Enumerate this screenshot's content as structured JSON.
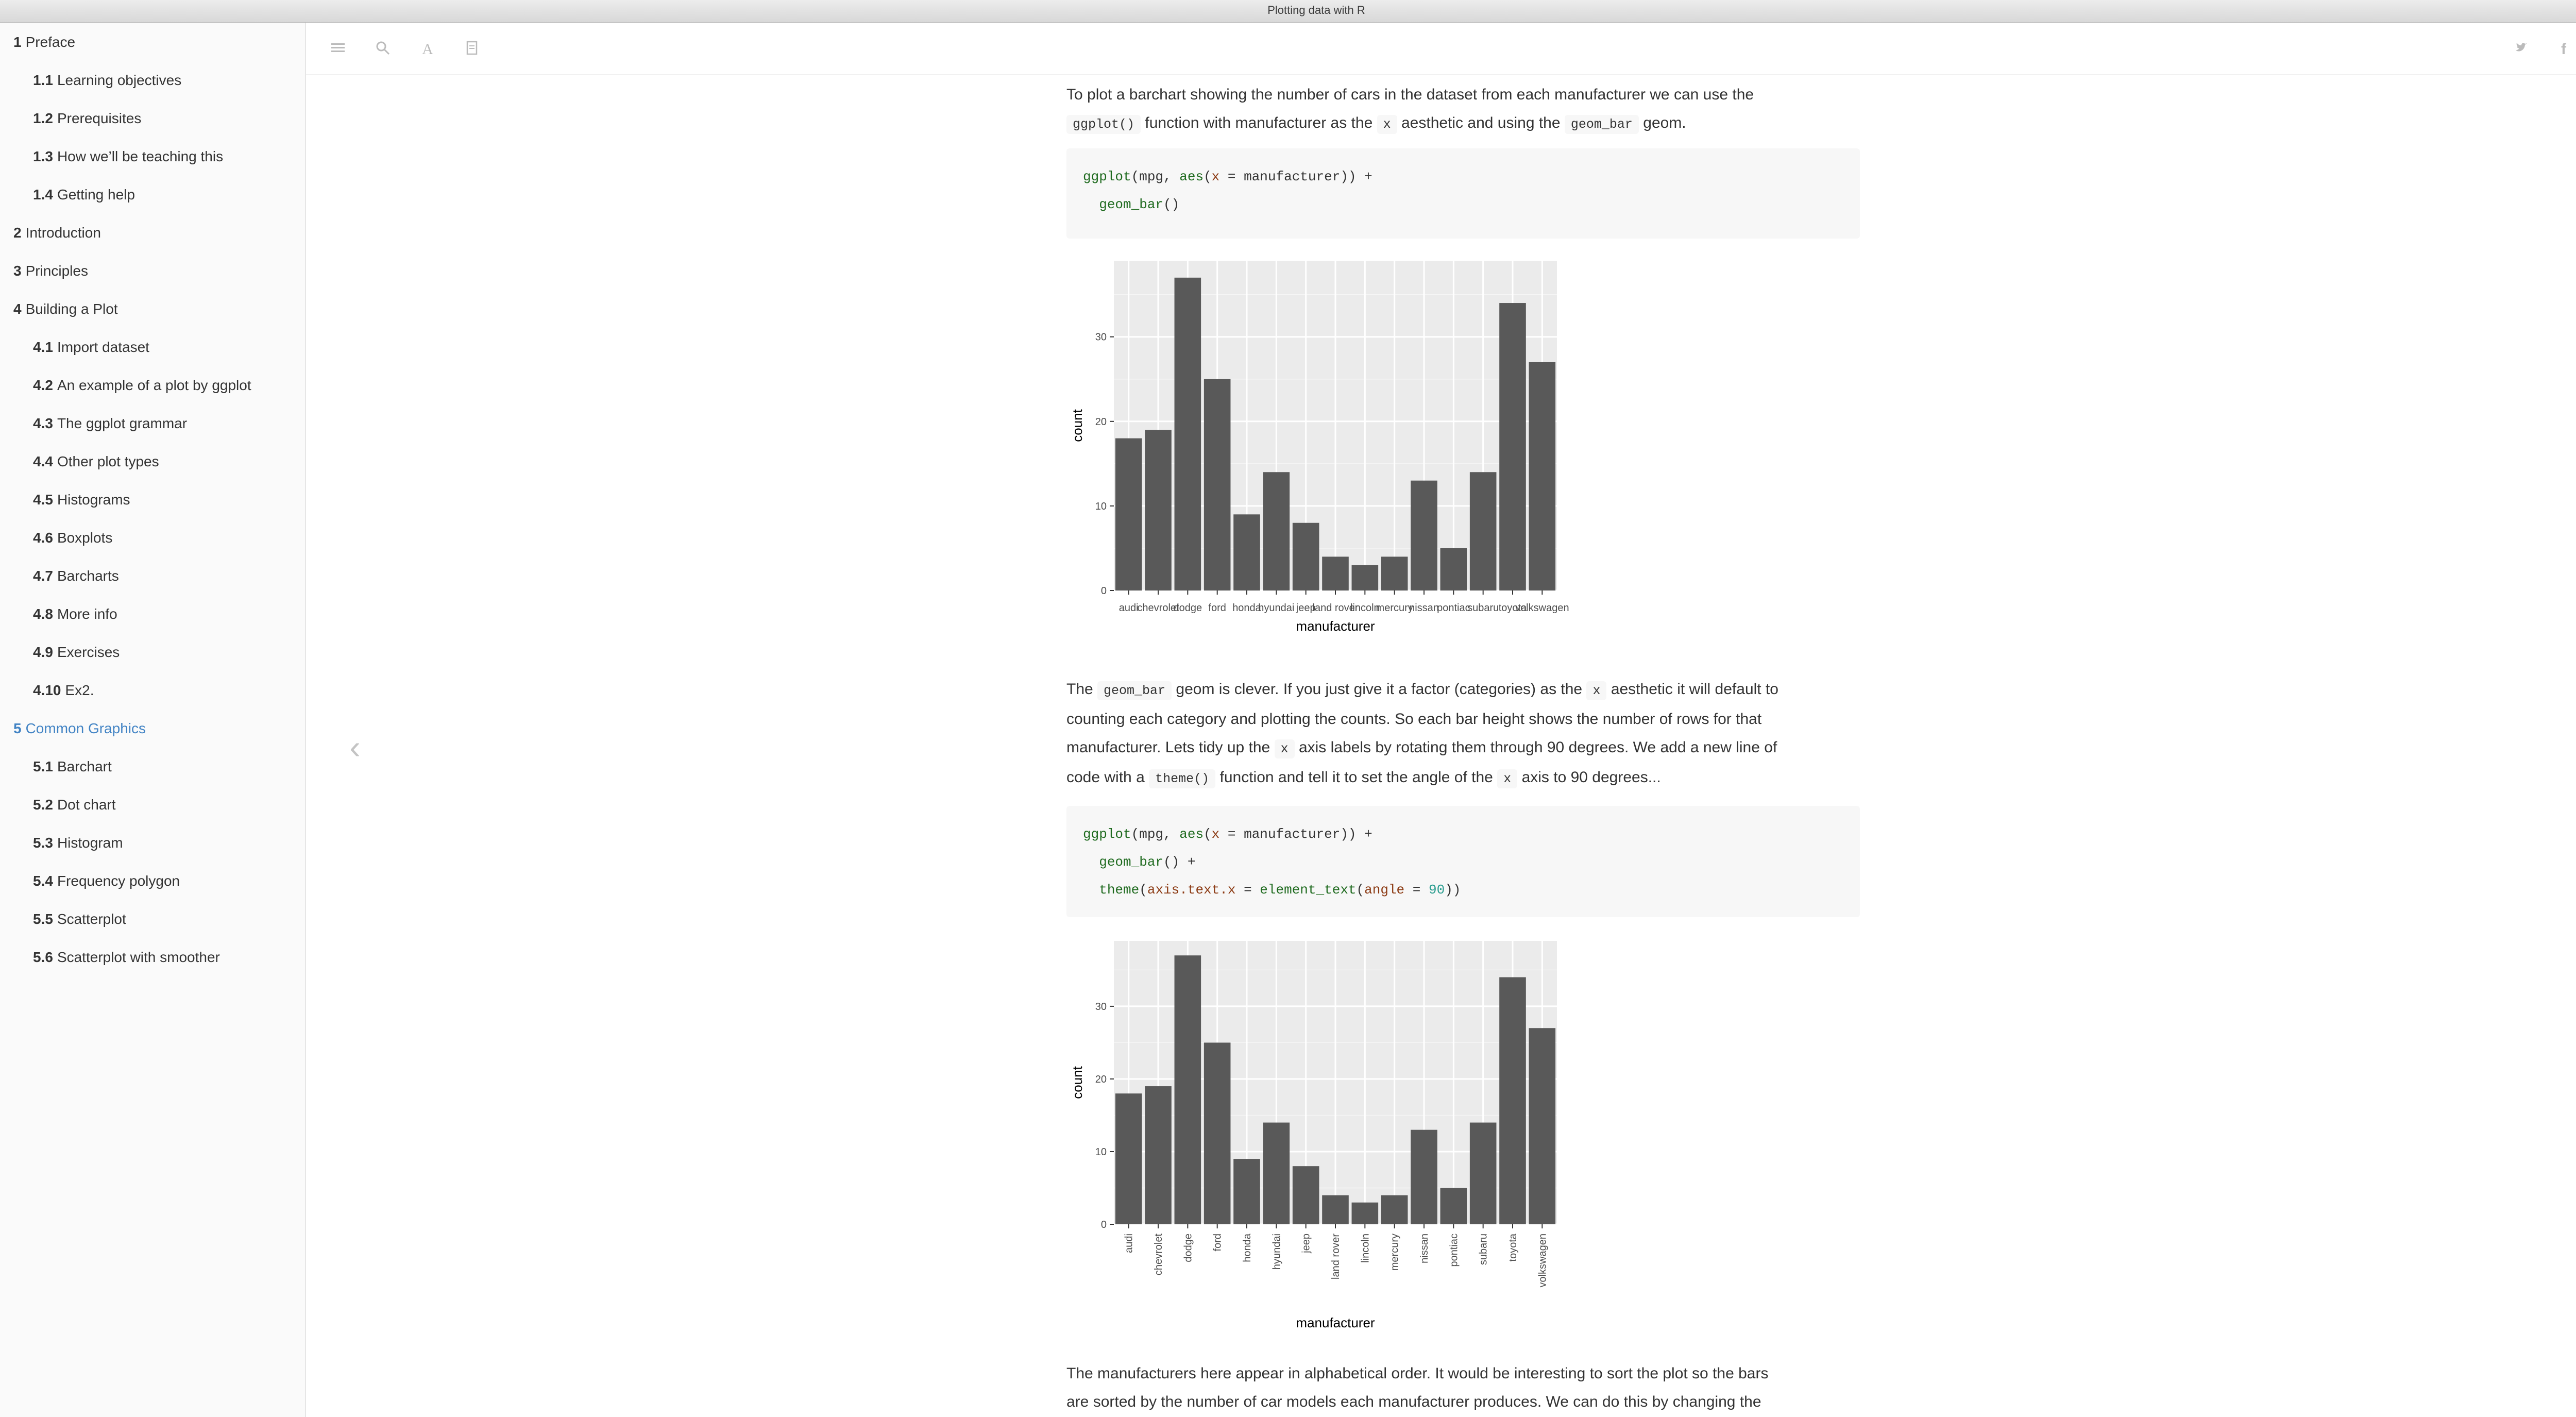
{
  "window": {
    "title": "Plotting data with R"
  },
  "toc": [
    {
      "num": "1",
      "label": "Preface",
      "level": 1
    },
    {
      "num": "1.1",
      "label": "Learning objectives",
      "level": 2
    },
    {
      "num": "1.2",
      "label": "Prerequisites",
      "level": 2
    },
    {
      "num": "1.3",
      "label": "How we’ll be teaching this",
      "level": 2
    },
    {
      "num": "1.4",
      "label": "Getting help",
      "level": 2
    },
    {
      "num": "2",
      "label": "Introduction",
      "level": 1
    },
    {
      "num": "3",
      "label": "Principles",
      "level": 1
    },
    {
      "num": "4",
      "label": "Building a Plot",
      "level": 1
    },
    {
      "num": "4.1",
      "label": "Import dataset",
      "level": 2
    },
    {
      "num": "4.2",
      "label": "An example of a plot by ggplot",
      "level": 2
    },
    {
      "num": "4.3",
      "label": "The ggplot grammar",
      "level": 2
    },
    {
      "num": "4.4",
      "label": "Other plot types",
      "level": 2
    },
    {
      "num": "4.5",
      "label": "Histograms",
      "level": 2
    },
    {
      "num": "4.6",
      "label": "Boxplots",
      "level": 2
    },
    {
      "num": "4.7",
      "label": "Barcharts",
      "level": 2
    },
    {
      "num": "4.8",
      "label": "More info",
      "level": 2
    },
    {
      "num": "4.9",
      "label": "Exercises",
      "level": 2
    },
    {
      "num": "4.10",
      "label": "Ex2.",
      "level": 2
    },
    {
      "num": "5",
      "label": "Common Graphics",
      "level": 1,
      "active": true
    },
    {
      "num": "5.1",
      "label": "Barchart",
      "level": 2
    },
    {
      "num": "5.2",
      "label": "Dot chart",
      "level": 2
    },
    {
      "num": "5.3",
      "label": "Histogram",
      "level": 2
    },
    {
      "num": "5.4",
      "label": "Frequency polygon",
      "level": 2
    },
    {
      "num": "5.5",
      "label": "Scatterplot",
      "level": 2
    },
    {
      "num": "5.6",
      "label": "Scatterplot with smoother",
      "level": 2
    }
  ],
  "toolbar": {
    "icons": [
      "menu-icon",
      "search-icon",
      "font-icon",
      "document-icon"
    ],
    "share_icons": [
      "twitter-icon",
      "facebook-icon",
      "share-icon"
    ]
  },
  "content": {
    "p1": {
      "t1": "To plot a barchart showing the number of cars in the dataset from each manufacturer we can use the",
      "c1": "ggplot()",
      "t2": "function with manufacturer as the",
      "c2": "x",
      "t3": "aesthetic and using the",
      "c3": "geom_bar",
      "t4": "geom."
    },
    "code1": {
      "l1": [
        "ggplot",
        "(mpg, ",
        "aes",
        "(",
        "x",
        " = manufacturer)) +"
      ],
      "l2": [
        "  ",
        "geom_bar",
        "()"
      ]
    },
    "p2": {
      "t1": "The",
      "c1": "geom_bar",
      "t2": "geom is clever. If you just give it a factor (categories) as the",
      "c2": "x",
      "t3": "aesthetic it will default to",
      "t4": "counting each category and plotting the counts. So each bar height shows the number of rows for that",
      "t5": "manufacturer. Lets tidy up the",
      "c3": "x",
      "t6": "axis labels by rotating them through 90 degrees. We add a new line of",
      "t7": "code with a",
      "c4": "theme()",
      "t8": "function and tell it to set the angle of the",
      "c5": "x",
      "t9": "axis to 90 degrees..."
    },
    "code2": {
      "l1": [
        "ggplot",
        "(mpg, ",
        "aes",
        "(",
        "x",
        " = manufacturer)) +"
      ],
      "l2": [
        "  ",
        "geom_bar",
        "() +"
      ],
      "l3": [
        "  ",
        "theme",
        "(",
        "axis.text.x",
        " = ",
        "element_text",
        "(",
        "angle",
        " = ",
        "90",
        "))"
      ]
    },
    "p3": {
      "t1": "The manufacturers here appear in alphabetical order. It would be interesting to sort the plot so the bars",
      "t2": "are sorted by the number of car models each manufacturer produces. We can do this by changing the"
    }
  },
  "chart_data": [
    {
      "type": "bar",
      "categories": [
        "audi",
        "chevrolet",
        "dodge",
        "ford",
        "honda",
        "hyundai",
        "jeep",
        "land rover",
        "lincoln",
        "mercury",
        "nissan",
        "pontiac",
        "subaru",
        "toyota",
        "volkswagen"
      ],
      "values": [
        18,
        19,
        37,
        25,
        9,
        14,
        8,
        4,
        3,
        4,
        13,
        5,
        14,
        34,
        27
      ],
      "xlabel": "manufacturer",
      "ylabel": "count",
      "yticks": [
        0,
        10,
        20,
        30
      ],
      "ylim": [
        0,
        39
      ],
      "x_label_rotation": 0,
      "bar_color": "#595959",
      "panel_color": "#ebebeb"
    },
    {
      "type": "bar",
      "categories": [
        "audi",
        "chevrolet",
        "dodge",
        "ford",
        "honda",
        "hyundai",
        "jeep",
        "land rover",
        "lincoln",
        "mercury",
        "nissan",
        "pontiac",
        "subaru",
        "toyota",
        "volkswagen"
      ],
      "values": [
        18,
        19,
        37,
        25,
        9,
        14,
        8,
        4,
        3,
        4,
        13,
        5,
        14,
        34,
        27
      ],
      "xlabel": "manufacturer",
      "ylabel": "count",
      "yticks": [
        0,
        10,
        20,
        30
      ],
      "ylim": [
        0,
        39
      ],
      "x_label_rotation": 90,
      "bar_color": "#595959",
      "panel_color": "#ebebeb"
    }
  ]
}
